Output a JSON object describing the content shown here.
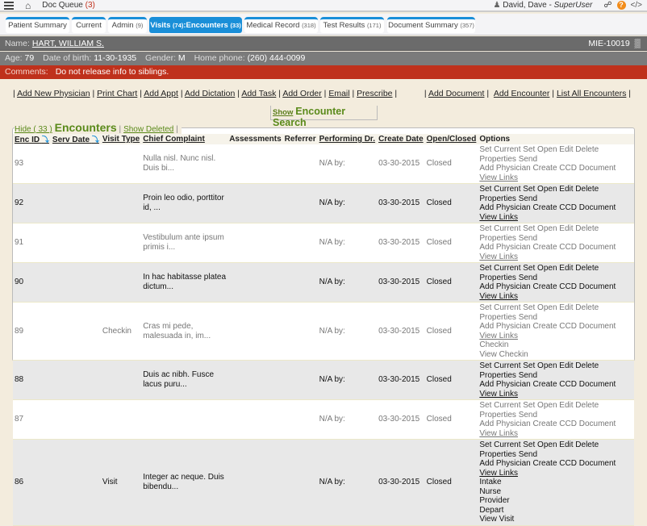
{
  "topbar": {
    "doc_queue_label": "Doc Queue",
    "doc_queue_count": "(3)",
    "user_name": "David, Dave - ",
    "user_role": "SuperUser",
    "code_label": "</>"
  },
  "tabs": [
    {
      "label": "Patient Summary",
      "count": ""
    },
    {
      "label": "Current",
      "count": ""
    },
    {
      "label": "Admin",
      "count": "(9)"
    },
    {
      "label": "Visits ",
      "count": "(74)",
      "label2": ":Encounters ",
      "count2": "(33)"
    },
    {
      "label": "Medical Record",
      "count": "(318)"
    },
    {
      "label": "Test Results",
      "count": "(171)"
    },
    {
      "label": "Document Summary",
      "count": "(357)"
    }
  ],
  "patient": {
    "name_label": "Name:",
    "name": "HART, WILLIAM S.",
    "mrn": "MIE-10019",
    "age_label": "Age:",
    "age": "79",
    "dob_label": "Date of birth:",
    "dob": "11-30-1935",
    "gender_label": "Gender:",
    "gender": "M",
    "phone_label": "Home phone:",
    "phone": "(260) 444-0099",
    "comments_label": "Comments:",
    "comments": "Do not release info to siblings."
  },
  "actions_left": [
    "Add New Physician",
    "Print Chart",
    "Add Appt",
    "Add Dictation",
    "Add Task",
    "Add Order",
    "Email",
    "Prescribe"
  ],
  "actions_right": [
    "Add Document",
    "Add Encounter",
    "List All Encounters"
  ],
  "encounter_search": {
    "show_label": "Show",
    "title": "Encounter Search"
  },
  "encounters": {
    "hide_label": "Hide ( 33 )",
    "title": "Encounters",
    "show_deleted": "Show Deleted",
    "columns": [
      "Enc ID",
      "Serv Date",
      "Visit Type",
      "Chief Complaint",
      "Assessments",
      "Referrer",
      "Performing Dr.",
      "Create Date",
      "Open/Closed",
      "Options"
    ],
    "options_line1": "Set Current Set Open Edit Delete Properties Send",
    "options_line2": "Add Physician Create CCD Document",
    "view_links": "View Links",
    "rows": [
      {
        "id": "93",
        "visit_type": "",
        "complaint": "Nulla nisl. Nunc nisl. Duis bi...",
        "performing": "N/A by:",
        "create_date": "03-30-2015",
        "status": "Closed",
        "extra": []
      },
      {
        "id": "92",
        "visit_type": "",
        "complaint": "Proin leo odio, porttitor id, ...",
        "performing": "N/A by:",
        "create_date": "03-30-2015",
        "status": "Closed",
        "extra": []
      },
      {
        "id": "91",
        "visit_type": "",
        "complaint": "Vestibulum ante ipsum primis i...",
        "performing": "N/A by:",
        "create_date": "03-30-2015",
        "status": "Closed",
        "extra": []
      },
      {
        "id": "90",
        "visit_type": "",
        "complaint": "In hac habitasse platea dictum...",
        "performing": "N/A by:",
        "create_date": "03-30-2015",
        "status": "Closed",
        "extra": []
      },
      {
        "id": "89",
        "visit_type": "Checkin",
        "complaint": "Cras mi pede, malesuada in, im...",
        "performing": "N/A by:",
        "create_date": "03-30-2015",
        "status": "Closed",
        "extra": [
          "Checkin",
          "View Checkin"
        ]
      },
      {
        "id": "88",
        "visit_type": "",
        "complaint": "Duis ac nibh. Fusce lacus puru...",
        "performing": "N/A by:",
        "create_date": "03-30-2015",
        "status": "Closed",
        "extra": []
      },
      {
        "id": "87",
        "visit_type": "",
        "complaint": "",
        "performing": "N/A by:",
        "create_date": "03-30-2015",
        "status": "Closed",
        "extra": []
      },
      {
        "id": "86",
        "visit_type": "Visit",
        "complaint": "Integer ac neque. Duis bibendu...",
        "performing": "N/A by:",
        "create_date": "03-30-2015",
        "status": "Closed",
        "extra": [
          "Intake",
          "Nurse",
          "Provider",
          "Depart",
          "View Visit"
        ]
      }
    ]
  }
}
